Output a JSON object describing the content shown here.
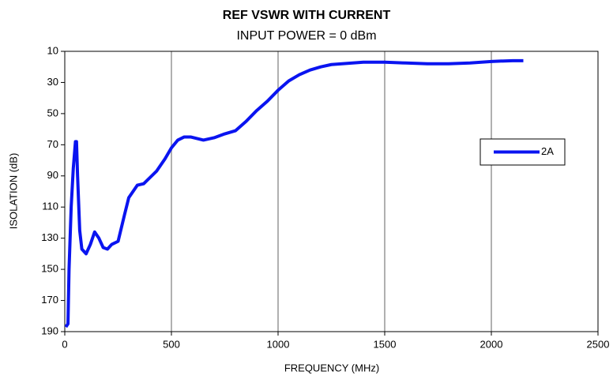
{
  "chart_data": {
    "type": "line",
    "title": "REF VSWR WITH CURRENT",
    "subtitle": "INPUT POWER = 0 dBm",
    "x_label": "FREQUENCY (MHz)",
    "y_label": "ISOLATION (dB)",
    "x": [
      5,
      15,
      20,
      30,
      40,
      50,
      55,
      60,
      70,
      80,
      100,
      120,
      140,
      160,
      180,
      200,
      220,
      250,
      280,
      300,
      340,
      370,
      400,
      430,
      470,
      500,
      530,
      560,
      590,
      620,
      650,
      700,
      750,
      800,
      850,
      900,
      950,
      1000,
      1050,
      1100,
      1150,
      1200,
      1250,
      1300,
      1400,
      1500,
      1600,
      1700,
      1800,
      1900,
      2000,
      2100,
      2150
    ],
    "series": [
      {
        "name": "2A",
        "color": "#0a14f0",
        "values": [
          187,
          185,
          150,
          110,
          85,
          68,
          68,
          90,
          125,
          137,
          140,
          134,
          126,
          130,
          136,
          137,
          134,
          132,
          115,
          104,
          96,
          95,
          91,
          87,
          79,
          72,
          67,
          65,
          65,
          66,
          67,
          65.5,
          63,
          61,
          55,
          48,
          42,
          35,
          29,
          25,
          22,
          20,
          18.5,
          18,
          17,
          17,
          17.5,
          18,
          18,
          17.5,
          16.5,
          16,
          16
        ]
      }
    ],
    "xlim": [
      0,
      2500
    ],
    "xticks": [
      0,
      500,
      1000,
      1500,
      2000,
      2500
    ],
    "ylim": [
      190,
      10
    ],
    "yticks": [
      10,
      30,
      50,
      70,
      90,
      110,
      130,
      150,
      170,
      190
    ],
    "grid": "x",
    "legend": "right"
  }
}
